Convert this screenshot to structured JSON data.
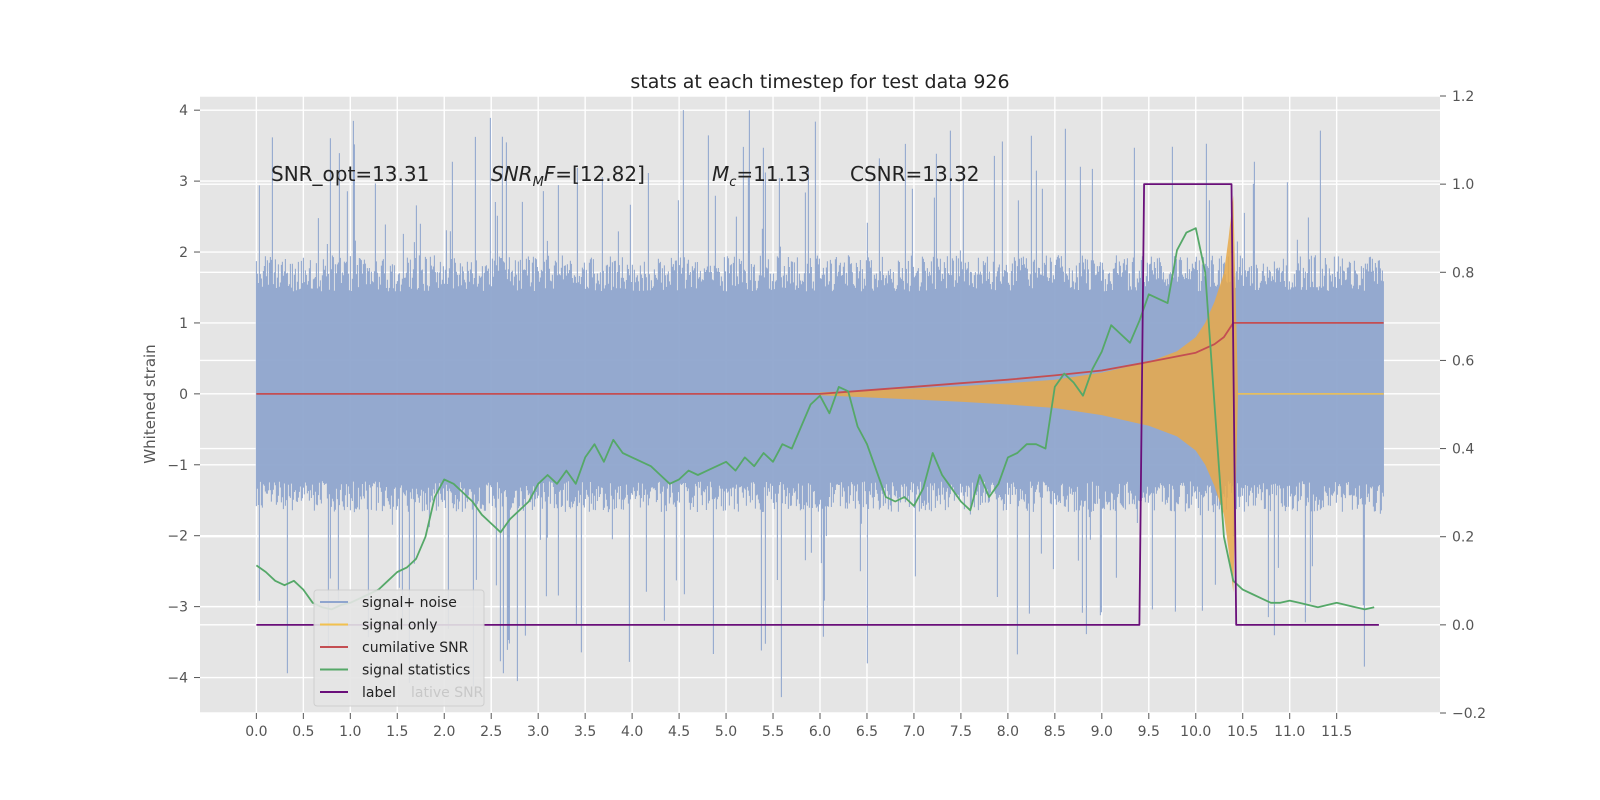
{
  "chart_data": {
    "type": "line",
    "title": "stats at each timestep for test data 926",
    "ylabel": "Whitened strain",
    "y2label": "",
    "xlim": [
      -0.6,
      12.6
    ],
    "ylim": [
      -4.5,
      4.2
    ],
    "y2lim": [
      -0.2,
      1.2
    ],
    "x_ticks": [
      0.0,
      0.5,
      1.0,
      1.5,
      2.0,
      2.5,
      3.0,
      3.5,
      4.0,
      4.5,
      5.0,
      5.5,
      6.0,
      6.5,
      7.0,
      7.5,
      8.0,
      8.5,
      9.0,
      9.5,
      10.0,
      10.5,
      11.0,
      11.5
    ],
    "x_tick_labels": [
      "0.0",
      "0.5",
      "1.0",
      "1.5",
      "2.0",
      "2.5",
      "3.0",
      "3.5",
      "4.0",
      "4.5",
      "5.0",
      "5.5",
      "6.0",
      "6.5",
      "7.0",
      "7.5",
      "8.0",
      "8.5",
      "9.0",
      "9.5",
      "10.0",
      "10.5",
      "11.0",
      "11.5"
    ],
    "y_ticks": [
      -4,
      -3,
      -2,
      -1,
      0,
      1,
      2,
      3,
      4
    ],
    "y_tick_labels": [
      "−4",
      "−3",
      "−2",
      "−1",
      "0",
      "1",
      "2",
      "3",
      "4"
    ],
    "y2_ticks": [
      -0.2,
      0.0,
      0.2,
      0.4,
      0.6,
      0.8,
      1.0,
      1.2
    ],
    "y2_tick_labels": [
      "−0.2",
      "0.0",
      "0.2",
      "0.4",
      "0.6",
      "0.8",
      "1.0",
      "1.2"
    ],
    "grid": true,
    "legend_position": "lower-left",
    "annotations": [
      {
        "id": "snr-opt",
        "text": "SNR_opt=13.31",
        "x": 0.2,
        "y": 3.0
      },
      {
        "id": "snr-mf",
        "text": "SNR_MF=[12.82]",
        "x": 2.6,
        "y": 3.0
      },
      {
        "id": "mc",
        "text": "M_c=11.13",
        "x": 5.0,
        "y": 3.0
      },
      {
        "id": "csnr",
        "text": "CSNR=13.32",
        "x": 6.5,
        "y": 3.0
      }
    ],
    "series": [
      {
        "name": "signal+ noise",
        "axis": "left",
        "color": "#8fa5ce",
        "kind": "noise-band",
        "x_range": [
          0.0,
          12.0
        ],
        "band_typical": [
          -1.45,
          1.7
        ],
        "peak_max": 3.85,
        "peak_min": -4.1
      },
      {
        "name": "signal only",
        "axis": "left",
        "color": "#f2c14e",
        "fill_color": "#e8a94a",
        "kind": "chirp",
        "x": [
          6.0,
          6.5,
          7.0,
          7.5,
          8.0,
          8.5,
          9.0,
          9.5,
          9.8,
          10.0,
          10.1,
          10.2,
          10.3,
          10.35,
          10.4,
          10.45
        ],
        "amplitude": [
          0.02,
          0.05,
          0.08,
          0.11,
          0.15,
          0.2,
          0.3,
          0.45,
          0.6,
          0.8,
          1.0,
          1.3,
          1.7,
          2.2,
          2.8,
          0.0
        ]
      },
      {
        "name": "cumilative SNR",
        "axis": "left",
        "color": "#c44e52",
        "x": [
          0.0,
          6.0,
          6.5,
          7.0,
          7.5,
          8.0,
          8.5,
          9.0,
          9.5,
          10.0,
          10.2,
          10.3,
          10.4,
          10.5,
          12.0
        ],
        "y": [
          0.0,
          0.0,
          0.05,
          0.1,
          0.15,
          0.2,
          0.26,
          0.33,
          0.45,
          0.58,
          0.7,
          0.8,
          1.0,
          1.0,
          1.0
        ]
      },
      {
        "name": "signal statistics",
        "axis": "right",
        "color": "#55a868",
        "x": [
          0.0,
          0.1,
          0.2,
          0.3,
          0.4,
          0.5,
          0.6,
          0.7,
          0.8,
          0.9,
          1.0,
          1.1,
          1.2,
          1.3,
          1.4,
          1.5,
          1.6,
          1.7,
          1.8,
          1.9,
          2.0,
          2.1,
          2.2,
          2.3,
          2.4,
          2.5,
          2.6,
          2.7,
          2.8,
          2.9,
          3.0,
          3.1,
          3.2,
          3.3,
          3.4,
          3.5,
          3.6,
          3.7,
          3.8,
          3.9,
          4.0,
          4.1,
          4.2,
          4.3,
          4.4,
          4.5,
          4.6,
          4.7,
          4.8,
          4.9,
          5.0,
          5.1,
          5.2,
          5.3,
          5.4,
          5.5,
          5.6,
          5.7,
          5.8,
          5.9,
          6.0,
          6.1,
          6.2,
          6.3,
          6.4,
          6.5,
          6.6,
          6.7,
          6.8,
          6.9,
          7.0,
          7.1,
          7.2,
          7.3,
          7.4,
          7.5,
          7.6,
          7.7,
          7.8,
          7.9,
          8.0,
          8.1,
          8.2,
          8.3,
          8.4,
          8.5,
          8.6,
          8.7,
          8.8,
          8.9,
          9.0,
          9.1,
          9.2,
          9.3,
          9.4,
          9.5,
          9.6,
          9.7,
          9.8,
          9.9,
          10.0,
          10.1,
          10.2,
          10.3,
          10.4,
          10.5,
          10.6,
          10.7,
          10.8,
          10.9,
          11.0,
          11.1,
          11.2,
          11.3,
          11.4,
          11.5,
          11.6,
          11.7,
          11.8,
          11.9
        ],
        "y": [
          0.135,
          0.12,
          0.1,
          0.09,
          0.1,
          0.08,
          0.05,
          0.04,
          0.035,
          0.045,
          0.05,
          0.06,
          0.07,
          0.08,
          0.1,
          0.12,
          0.13,
          0.15,
          0.2,
          0.29,
          0.33,
          0.32,
          0.3,
          0.28,
          0.25,
          0.23,
          0.21,
          0.24,
          0.26,
          0.28,
          0.32,
          0.34,
          0.32,
          0.35,
          0.32,
          0.38,
          0.41,
          0.37,
          0.42,
          0.39,
          0.38,
          0.37,
          0.36,
          0.34,
          0.32,
          0.33,
          0.35,
          0.34,
          0.35,
          0.36,
          0.37,
          0.35,
          0.38,
          0.36,
          0.39,
          0.37,
          0.41,
          0.4,
          0.45,
          0.5,
          0.52,
          0.48,
          0.54,
          0.53,
          0.45,
          0.41,
          0.35,
          0.29,
          0.28,
          0.29,
          0.27,
          0.31,
          0.39,
          0.34,
          0.31,
          0.28,
          0.26,
          0.34,
          0.29,
          0.32,
          0.38,
          0.39,
          0.41,
          0.41,
          0.4,
          0.54,
          0.57,
          0.55,
          0.52,
          0.58,
          0.62,
          0.68,
          0.66,
          0.64,
          0.69,
          0.75,
          0.74,
          0.73,
          0.85,
          0.89,
          0.9,
          0.8,
          0.5,
          0.2,
          0.1,
          0.08,
          0.07,
          0.06,
          0.05,
          0.05,
          0.055,
          0.05,
          0.045,
          0.04,
          0.045,
          0.05,
          0.045,
          0.04,
          0.035,
          0.04
        ]
      },
      {
        "name": "label",
        "axis": "right",
        "color": "#6a0f7a",
        "x": [
          0.0,
          9.4,
          9.45,
          10.38,
          10.43,
          11.95
        ],
        "y": [
          0.0,
          0.0,
          1.0,
          1.0,
          0.0,
          0.0
        ]
      }
    ],
    "legend": [
      {
        "name": "signal+ noise",
        "color": "#8fa5ce"
      },
      {
        "name": "signal only",
        "color": "#f2c14e"
      },
      {
        "name": "cumilative SNR",
        "color": "#c44e52"
      },
      {
        "name": "signal statistics",
        "color": "#55a868"
      },
      {
        "name": "label",
        "color": "#6a0f7a"
      }
    ],
    "legend_overlap_text": "lative SNR"
  },
  "colors": {
    "plot_background": "#e5e5e5",
    "grid": "#ffffff",
    "text": "#222222",
    "tick_text": "#555555"
  }
}
